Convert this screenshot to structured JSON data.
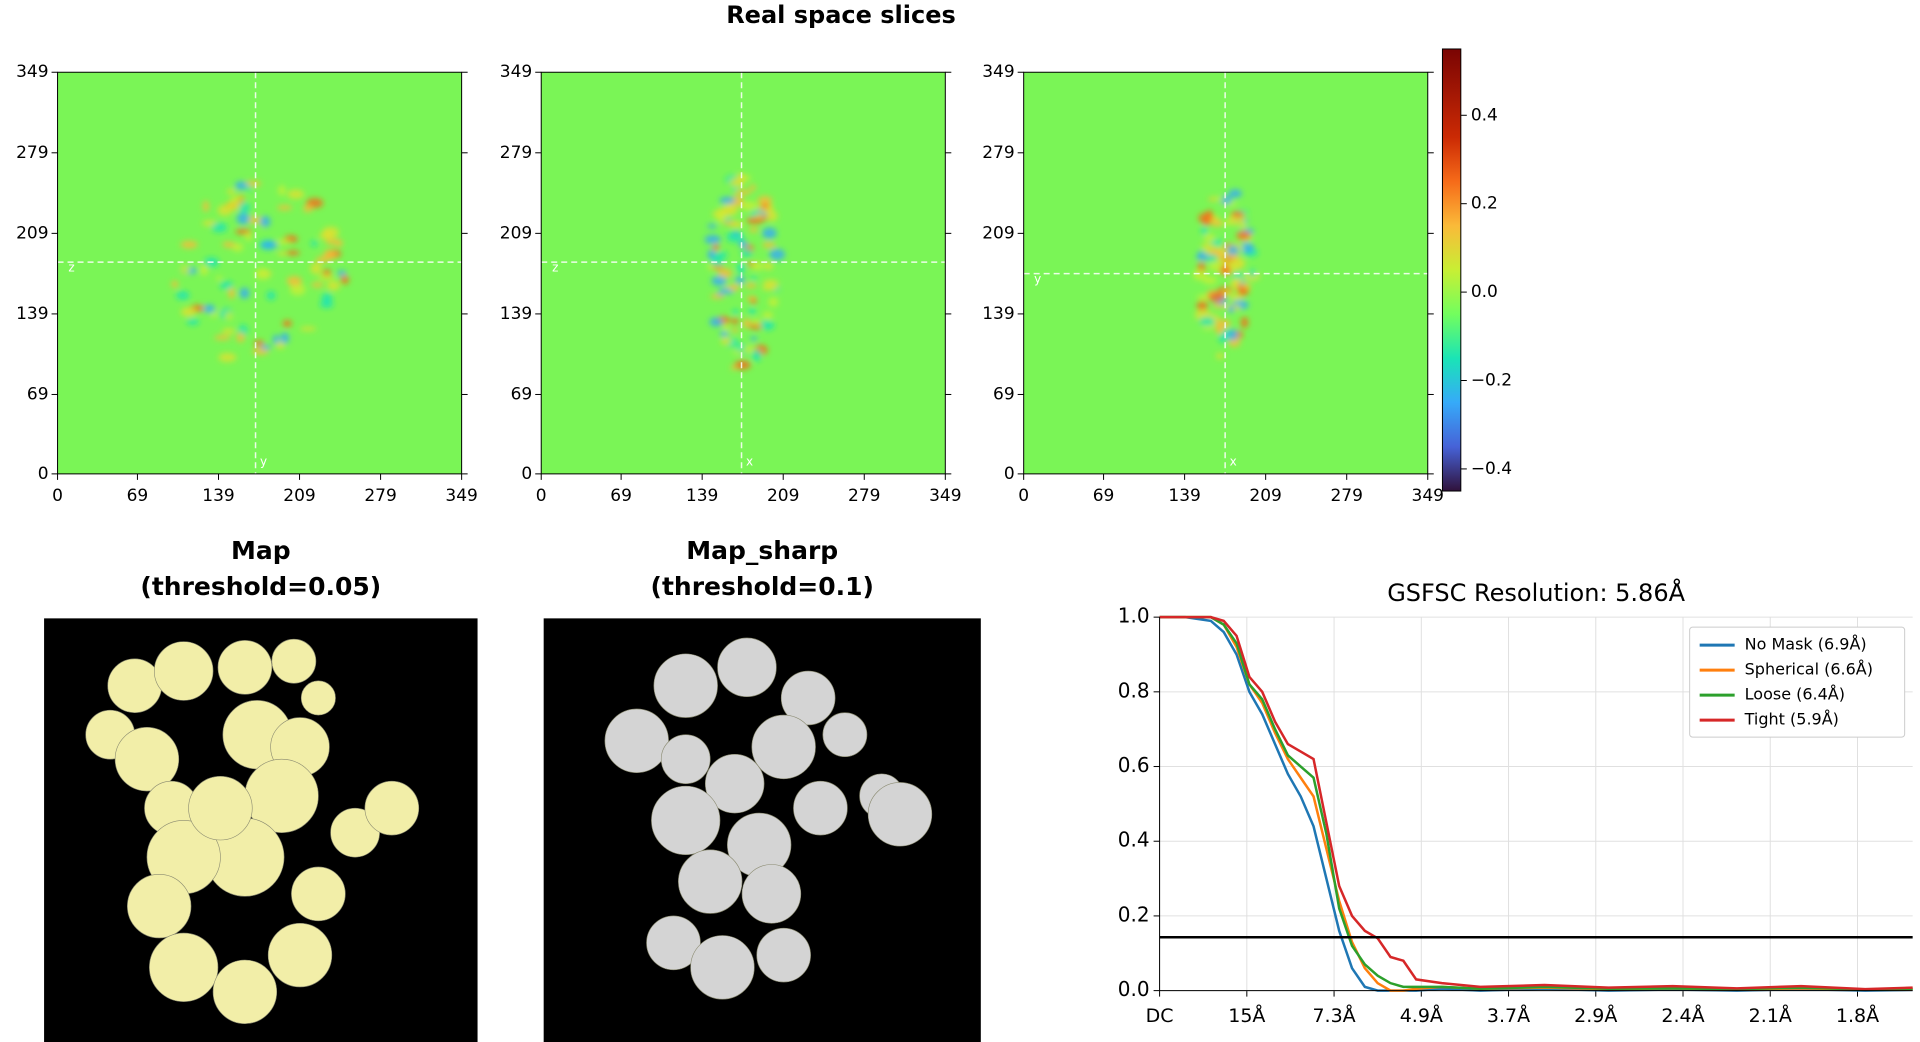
{
  "title": "Real space slices",
  "chart_data": [
    {
      "type": "heatmap",
      "colormap": "turbo",
      "panels": [
        {
          "xlim": [
            0,
            349
          ],
          "ylim": [
            0,
            349
          ],
          "xticks": [
            0,
            69,
            139,
            209,
            279,
            349
          ],
          "yticks": [
            0,
            69,
            139,
            209,
            279,
            349
          ],
          "crosshair": [
            171,
            184
          ],
          "h_marker": "z",
          "v_marker": "y"
        },
        {
          "xlim": [
            0,
            349
          ],
          "ylim": [
            0,
            349
          ],
          "xticks": [
            0,
            69,
            139,
            209,
            279,
            349
          ],
          "yticks": [
            0,
            69,
            139,
            209,
            279,
            349
          ],
          "crosshair": [
            173,
            184
          ],
          "h_marker": "z",
          "v_marker": "x"
        },
        {
          "xlim": [
            0,
            349
          ],
          "ylim": [
            0,
            349
          ],
          "xticks": [
            0,
            69,
            139,
            209,
            279,
            349
          ],
          "yticks": [
            0,
            69,
            139,
            209,
            279,
            349
          ],
          "crosshair": [
            174,
            174
          ],
          "h_marker": "y",
          "v_marker": "x"
        }
      ],
      "colorbar": {
        "lim": [
          -0.45,
          0.55
        ],
        "ticks": [
          {
            "value": -0.4,
            "label": "−0.4"
          },
          {
            "value": -0.2,
            "label": "−0.2"
          },
          {
            "value": 0,
            "label": "0.0"
          },
          0.2,
          0.4
        ]
      }
    },
    {
      "type": "line",
      "title": "GSFSC Resolution: 5.86Å",
      "x": [
        0,
        0.02,
        0.04,
        0.05,
        0.06,
        0.07,
        0.08,
        0.09,
        0.1,
        0.11,
        0.12,
        0.13,
        0.14,
        0.15,
        0.16,
        0.17,
        0.18,
        0.19,
        0.2,
        0.22,
        0.25,
        0.3,
        0.35,
        0.4,
        0.45,
        0.5,
        0.55,
        0.587
      ],
      "series": [
        {
          "name": "No Mask (6.9Å)",
          "color": "#1f77b4",
          "values": [
            1,
            1,
            0.99,
            0.96,
            0.9,
            0.8,
            0.74,
            0.66,
            0.58,
            0.52,
            0.44,
            0.3,
            0.16,
            0.06,
            0.01,
            0,
            0,
            0,
            0,
            0.005,
            0,
            0.005,
            0,
            0.003,
            0,
            0.004,
            0,
            0.002
          ]
        },
        {
          "name": "Spherical (6.6Å)",
          "color": "#ff7f0e",
          "values": [
            1,
            1,
            1,
            0.98,
            0.92,
            0.82,
            0.77,
            0.69,
            0.62,
            0.57,
            0.52,
            0.38,
            0.24,
            0.13,
            0.06,
            0.02,
            0,
            0,
            0.005,
            0.01,
            0.005,
            0.008,
            0.004,
            0.006,
            0.003,
            0.006,
            0.003,
            0.004
          ]
        },
        {
          "name": "Loose (6.4Å)",
          "color": "#2ca02c",
          "values": [
            1,
            1,
            1,
            0.98,
            0.93,
            0.82,
            0.78,
            0.7,
            0.63,
            0.6,
            0.57,
            0.42,
            0.22,
            0.12,
            0.07,
            0.04,
            0.02,
            0.01,
            0.01,
            0.01,
            0.005,
            0.01,
            0.005,
            0.006,
            0.004,
            0.008,
            0.003,
            0.005
          ]
        },
        {
          "name": "Tight (5.9Å)",
          "color": "#d62728",
          "values": [
            1,
            1,
            1,
            0.99,
            0.95,
            0.84,
            0.8,
            0.72,
            0.66,
            0.64,
            0.62,
            0.45,
            0.28,
            0.2,
            0.16,
            0.14,
            0.09,
            0.08,
            0.03,
            0.02,
            0.01,
            0.015,
            0.008,
            0.012,
            0.006,
            0.012,
            0.004,
            0.008
          ]
        }
      ],
      "xlim": [
        0,
        0.587
      ],
      "ylim": [
        0,
        1
      ],
      "xticks": [
        {
          "value": 0,
          "label": "DC"
        },
        {
          "value": 0.068,
          "label": "15Å"
        },
        {
          "value": 0.136,
          "label": "7.3Å"
        },
        {
          "value": 0.204,
          "label": "4.9Å"
        },
        {
          "value": 0.272,
          "label": "3.7Å"
        },
        {
          "value": 0.34,
          "label": "2.9Å"
        },
        {
          "value": 0.408,
          "label": "2.4Å"
        },
        {
          "value": 0.476,
          "label": "2.1Å"
        },
        {
          "value": 0.544,
          "label": "1.8Å"
        }
      ],
      "yticks": [
        {
          "value": 0,
          "label": "0.0"
        },
        0.2,
        0.4,
        0.6,
        0.8,
        {
          "value": 1,
          "label": "1.0"
        }
      ],
      "grid": true,
      "legend": "upper right",
      "hline": 0.143,
      "hline_color": "#000000"
    }
  ],
  "renders": [
    {
      "lines": [
        "Map",
        "(threshold=0.05)"
      ],
      "color": "#f2eea8"
    },
    {
      "lines": [
        "Map_sharp",
        "(threshold=0.1)"
      ],
      "color": "#d4d4d4"
    }
  ]
}
